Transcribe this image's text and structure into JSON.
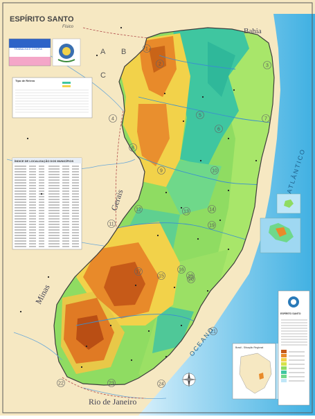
{
  "header": {
    "title": "ESPÍRITO SANTO",
    "subtitle": "Físico"
  },
  "flag": {
    "motto": "TRABALHA E CONFIA"
  },
  "regions": {
    "bahia": "Bahia",
    "minas_gerais": [
      "Minas",
      "Gerais"
    ],
    "rio": "Rio de Janeiro",
    "atlantico": "ATLÂNTICO",
    "oceano": "OCEANO"
  },
  "grid": {
    "columns": [
      "A",
      "B",
      "C"
    ],
    "numbers": [
      "1",
      "2",
      "3",
      "4",
      "5",
      "6",
      "7",
      "8",
      "9",
      "10",
      "11",
      "12",
      "13",
      "14",
      "15",
      "16",
      "17",
      "18",
      "19",
      "20",
      "21",
      "22",
      "23",
      "24"
    ]
  },
  "panels": {
    "index_title": "ÍNDICE DE LOCALIZAÇÃO DOS MUNICÍPIOS",
    "info_title": "Tipo de Relevo",
    "inset_title": "Brasil - Situação Regional",
    "legend_title": "ESPÍRITO SANTO"
  },
  "colors": {
    "land_outside": "#f6e8c2",
    "sea_deep": "#4fb8e6",
    "sea_shallow": "#bfe6f7",
    "lowland": "#8fdc62",
    "mid": "#f2d24a",
    "high": "#e88a2a",
    "highest": "#c65a18",
    "river": "#3a8fd0"
  }
}
